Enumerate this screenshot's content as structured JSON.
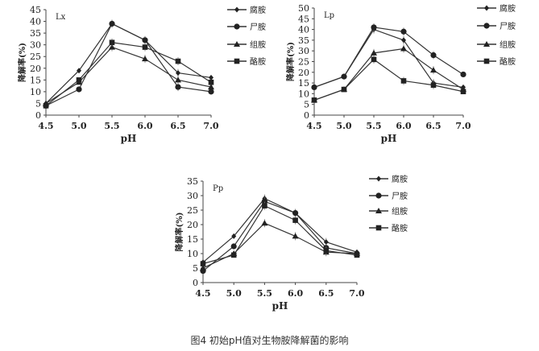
{
  "caption": "图4 初始pH值对生物胺降解菌的影响",
  "chart_data": [
    {
      "type": "line",
      "panel_label": "Lx",
      "xlabel": "pH",
      "ylabel": "降解率(%)",
      "x": [
        4.5,
        5.0,
        5.5,
        6.0,
        6.5,
        7.0
      ],
      "x_tick_labels": [
        "4.5",
        "5.0",
        "5.5",
        "6.0",
        "6.5",
        "7.0"
      ],
      "ylim": [
        0,
        45
      ],
      "y_ticks": [
        0,
        5,
        10,
        15,
        20,
        25,
        30,
        35,
        40,
        45
      ],
      "legend": "right",
      "error_bars": true,
      "series": [
        {
          "name": "腐胺",
          "marker": "diamond",
          "values": [
            5,
            19,
            39,
            32,
            18,
            16
          ]
        },
        {
          "name": "尸胺",
          "marker": "circle",
          "values": [
            4,
            11,
            39,
            32,
            12,
            10
          ]
        },
        {
          "name": "组胺",
          "marker": "triangle",
          "values": [
            5,
            14,
            29,
            24,
            15,
            12
          ]
        },
        {
          "name": "酪胺",
          "marker": "square",
          "values": [
            4,
            15,
            31,
            29,
            23,
            14
          ]
        }
      ]
    },
    {
      "type": "line",
      "panel_label": "Lp",
      "xlabel": "pH",
      "ylabel": "降解率(%)",
      "x": [
        4.5,
        5.0,
        5.5,
        6.0,
        6.5,
        7.0
      ],
      "x_tick_labels": [
        "4.5",
        "5.0",
        "5.5",
        "6.0",
        "6.5",
        "7.0"
      ],
      "ylim": [
        0,
        50
      ],
      "y_ticks": [
        0,
        5,
        10,
        15,
        20,
        25,
        30,
        35,
        40,
        45,
        50
      ],
      "legend": "right",
      "error_bars": true,
      "series": [
        {
          "name": "腐胺",
          "marker": "diamond",
          "values": [
            13,
            18,
            40,
            35,
            15,
            13
          ]
        },
        {
          "name": "尸胺",
          "marker": "circle",
          "values": [
            13,
            18,
            41,
            39,
            28,
            19
          ]
        },
        {
          "name": "组胺",
          "marker": "triangle",
          "values": [
            7,
            12,
            29,
            31,
            21,
            12
          ]
        },
        {
          "name": "酪胺",
          "marker": "square",
          "values": [
            7,
            12,
            26,
            16,
            14,
            11
          ]
        }
      ]
    },
    {
      "type": "line",
      "panel_label": "Pp",
      "xlabel": "pH",
      "ylabel": "降解率(%)",
      "x": [
        4.5,
        5.0,
        5.5,
        6.0,
        6.5,
        7.0
      ],
      "x_tick_labels": [
        "4.5",
        "5.0",
        "5.5",
        "6.0",
        "6.5",
        "7.0"
      ],
      "ylim": [
        0,
        35
      ],
      "y_ticks": [
        0,
        5,
        10,
        15,
        20,
        25,
        30,
        35
      ],
      "legend": "right",
      "error_bars": true,
      "series": [
        {
          "name": "腐胺",
          "marker": "diamond",
          "values": [
            7,
            16,
            29,
            24,
            14,
            10.5
          ]
        },
        {
          "name": "尸胺",
          "marker": "circle",
          "values": [
            4,
            12.5,
            28,
            24,
            12,
            10
          ]
        },
        {
          "name": "组胺",
          "marker": "triangle",
          "values": [
            5,
            10,
            20.5,
            16,
            10.5,
            10
          ]
        },
        {
          "name": "酪胺",
          "marker": "square",
          "values": [
            6.5,
            9.5,
            26.5,
            21.5,
            11,
            9.5
          ]
        }
      ]
    }
  ]
}
